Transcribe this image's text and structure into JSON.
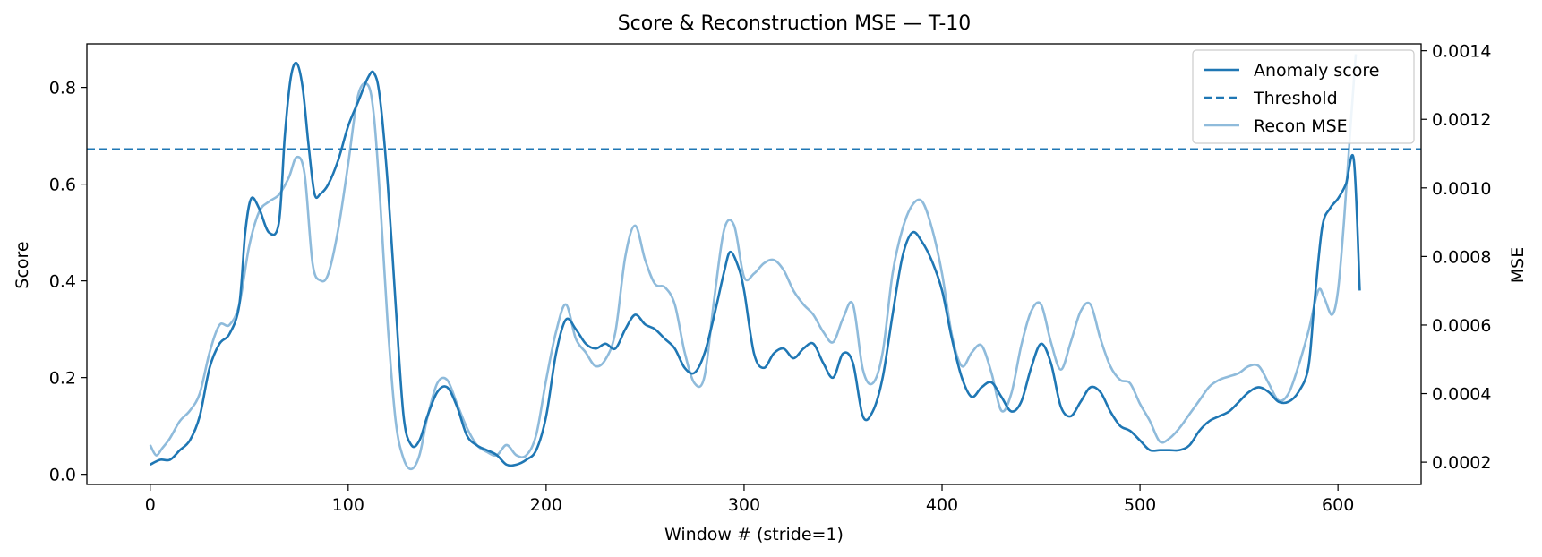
{
  "chart_data": {
    "type": "line",
    "title": "Score & Reconstruction MSE — T-10",
    "xlabel": "Window # (stride=1)",
    "ylabel_left": "Score",
    "ylabel_right": "MSE",
    "xlim": [
      -32,
      642
    ],
    "ylim_left": [
      -0.021,
      0.89
    ],
    "ylim_right": [
      0.000135,
      0.00142
    ],
    "xticks": [
      0,
      100,
      200,
      300,
      400,
      500,
      600
    ],
    "yticks_left": [
      0.0,
      0.2,
      0.4,
      0.6,
      0.8
    ],
    "yticks_left_labels": [
      "0.0",
      "0.2",
      "0.4",
      "0.6",
      "0.8"
    ],
    "yticks_right": [
      0.0002,
      0.0004,
      0.0006,
      0.0008,
      0.001,
      0.0012,
      0.0014
    ],
    "yticks_right_labels": [
      "0.0002",
      "0.0004",
      "0.0006",
      "0.0008",
      "0.0010",
      "0.0012",
      "0.0014"
    ],
    "threshold": 0.672,
    "legend_position": "top-right",
    "grid": false,
    "colors": {
      "score": "#1f77b4",
      "threshold": "#1f77b4",
      "mse": "#8fbbdb"
    },
    "series": [
      {
        "name": "Anomaly score",
        "axis": "left",
        "style": "solid",
        "x": [
          0,
          5,
          10,
          15,
          20,
          25,
          30,
          35,
          40,
          45,
          48,
          51,
          55,
          60,
          65,
          68,
          71,
          74,
          77,
          80,
          83,
          86,
          90,
          95,
          100,
          105,
          110,
          113,
          116,
          120,
          124,
          128,
          132,
          136,
          140,
          145,
          150,
          155,
          160,
          165,
          170,
          175,
          180,
          185,
          190,
          195,
          200,
          205,
          210,
          215,
          220,
          225,
          230,
          235,
          240,
          245,
          250,
          255,
          260,
          265,
          270,
          275,
          280,
          285,
          290,
          293,
          297,
          300,
          305,
          310,
          315,
          320,
          325,
          330,
          335,
          340,
          345,
          350,
          355,
          360,
          365,
          370,
          375,
          380,
          385,
          390,
          395,
          400,
          405,
          410,
          415,
          420,
          425,
          430,
          435,
          440,
          445,
          450,
          455,
          460,
          465,
          470,
          475,
          480,
          485,
          490,
          495,
          500,
          505,
          510,
          515,
          520,
          525,
          530,
          535,
          540,
          545,
          550,
          555,
          560,
          565,
          570,
          575,
          580,
          585,
          588,
          592,
          596,
          600,
          604,
          608,
          611
        ],
        "y": [
          0.02,
          0.03,
          0.03,
          0.05,
          0.07,
          0.12,
          0.22,
          0.27,
          0.29,
          0.35,
          0.5,
          0.57,
          0.55,
          0.5,
          0.52,
          0.7,
          0.82,
          0.85,
          0.8,
          0.68,
          0.58,
          0.58,
          0.6,
          0.65,
          0.72,
          0.77,
          0.82,
          0.83,
          0.78,
          0.6,
          0.35,
          0.12,
          0.06,
          0.07,
          0.12,
          0.17,
          0.18,
          0.14,
          0.08,
          0.06,
          0.05,
          0.04,
          0.02,
          0.02,
          0.03,
          0.05,
          0.12,
          0.25,
          0.32,
          0.3,
          0.27,
          0.26,
          0.27,
          0.26,
          0.3,
          0.33,
          0.31,
          0.3,
          0.28,
          0.26,
          0.22,
          0.21,
          0.25,
          0.33,
          0.42,
          0.46,
          0.43,
          0.38,
          0.25,
          0.22,
          0.25,
          0.26,
          0.24,
          0.26,
          0.27,
          0.23,
          0.2,
          0.25,
          0.23,
          0.12,
          0.13,
          0.2,
          0.33,
          0.45,
          0.5,
          0.48,
          0.44,
          0.38,
          0.28,
          0.2,
          0.16,
          0.18,
          0.19,
          0.16,
          0.13,
          0.15,
          0.22,
          0.27,
          0.23,
          0.14,
          0.12,
          0.15,
          0.18,
          0.17,
          0.13,
          0.1,
          0.09,
          0.07,
          0.05,
          0.05,
          0.05,
          0.05,
          0.06,
          0.09,
          0.11,
          0.12,
          0.13,
          0.15,
          0.17,
          0.18,
          0.17,
          0.15,
          0.15,
          0.17,
          0.22,
          0.35,
          0.51,
          0.55,
          0.57,
          0.6,
          0.65,
          0.38
        ]
      },
      {
        "name": "Threshold",
        "axis": "left",
        "style": "dashed"
      },
      {
        "name": "Recon MSE",
        "axis": "right",
        "style": "solid",
        "x": [
          0,
          3,
          6,
          10,
          15,
          20,
          25,
          30,
          35,
          40,
          45,
          50,
          55,
          60,
          65,
          70,
          74,
          78,
          82,
          86,
          90,
          95,
          100,
          105,
          110,
          113,
          116,
          120,
          124,
          128,
          132,
          136,
          140,
          145,
          150,
          155,
          160,
          165,
          170,
          175,
          180,
          185,
          190,
          195,
          200,
          205,
          210,
          215,
          220,
          225,
          230,
          235,
          240,
          245,
          250,
          255,
          260,
          265,
          270,
          275,
          280,
          285,
          290,
          295,
          300,
          305,
          310,
          315,
          320,
          325,
          330,
          335,
          340,
          345,
          350,
          355,
          360,
          365,
          370,
          375,
          380,
          385,
          390,
          395,
          400,
          405,
          410,
          415,
          420,
          425,
          430,
          435,
          440,
          445,
          450,
          455,
          460,
          465,
          470,
          475,
          480,
          485,
          490,
          495,
          500,
          505,
          510,
          515,
          520,
          525,
          530,
          535,
          540,
          545,
          550,
          555,
          560,
          565,
          570,
          575,
          580,
          585,
          590,
          593,
          597,
          600,
          603,
          606,
          609
        ],
        "y": [
          0.00025,
          0.00022,
          0.00024,
          0.00027,
          0.00032,
          0.00035,
          0.0004,
          0.00052,
          0.0006,
          0.0006,
          0.00066,
          0.00083,
          0.00093,
          0.00096,
          0.00098,
          0.00103,
          0.00109,
          0.00104,
          0.00078,
          0.00073,
          0.00075,
          0.00088,
          0.00107,
          0.00127,
          0.0013,
          0.00121,
          0.00098,
          0.0006,
          0.00032,
          0.00021,
          0.00018,
          0.00022,
          0.00033,
          0.00043,
          0.00044,
          0.00037,
          0.0003,
          0.00025,
          0.00023,
          0.00022,
          0.00025,
          0.00022,
          0.00022,
          0.00028,
          0.00044,
          0.00058,
          0.00066,
          0.00056,
          0.00052,
          0.00048,
          0.0005,
          0.00058,
          0.0008,
          0.00089,
          0.00079,
          0.00072,
          0.00071,
          0.00066,
          0.00052,
          0.00043,
          0.00045,
          0.00068,
          0.00088,
          0.00089,
          0.00074,
          0.00075,
          0.00078,
          0.00079,
          0.00076,
          0.0007,
          0.00066,
          0.00063,
          0.00058,
          0.00055,
          0.00062,
          0.00066,
          0.00047,
          0.00043,
          0.00052,
          0.00075,
          0.00088,
          0.00095,
          0.00096,
          0.00088,
          0.00075,
          0.00057,
          0.00048,
          0.00052,
          0.00054,
          0.00046,
          0.00035,
          0.0004,
          0.00054,
          0.00064,
          0.00066,
          0.00055,
          0.00047,
          0.00055,
          0.00064,
          0.00066,
          0.00056,
          0.00048,
          0.00044,
          0.00043,
          0.00037,
          0.00032,
          0.00026,
          0.00027,
          0.0003,
          0.00034,
          0.00038,
          0.00042,
          0.00044,
          0.00045,
          0.00046,
          0.00048,
          0.00048,
          0.00043,
          0.00038,
          0.0004,
          0.00048,
          0.00058,
          0.0007,
          0.00068,
          0.00063,
          0.0007,
          0.0009,
          0.00115,
          0.00139
        ]
      }
    ]
  }
}
